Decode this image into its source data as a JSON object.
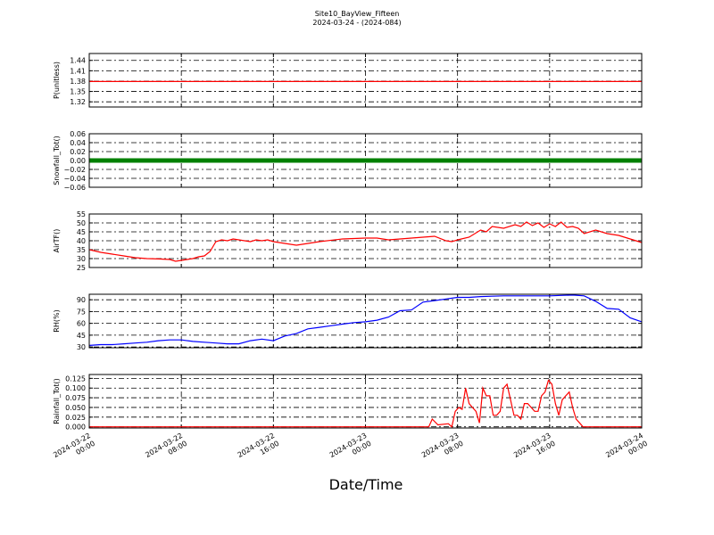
{
  "chart_data": {
    "type": "line",
    "title": "Site10_BayView_Fifteen",
    "subtitle": "2024-03-24 - (2024-084)",
    "xlabel": "Date/Time",
    "x_ticks": [
      [
        "2024-03-22",
        "00:00"
      ],
      [
        "2024-03-22",
        "08:00"
      ],
      [
        "2024-03-22",
        "16:00"
      ],
      [
        "2024-03-23",
        "00:00"
      ],
      [
        "2024-03-23",
        "08:00"
      ],
      [
        "2024-03-23",
        "16:00"
      ],
      [
        "2024-03-24",
        "00:00"
      ]
    ],
    "x_range_hours": [
      0,
      48
    ],
    "grid": true,
    "panels": [
      {
        "ylabel": "P(unitless)",
        "color": "#ff0000",
        "ylim": [
          1.305,
          1.46
        ],
        "y_ticks": [
          "1.44",
          "1.41",
          "1.38",
          "1.35",
          "1.32"
        ],
        "y_tick_values": [
          1.44,
          1.41,
          1.38,
          1.35,
          1.32
        ],
        "series": {
          "hours": [
            0,
            48
          ],
          "values": [
            1.379,
            1.379
          ]
        }
      },
      {
        "ylabel": "Snowfall_Tot()",
        "color": "#008000",
        "ylim": [
          -0.06,
          0.06
        ],
        "y_ticks": [
          "0.06",
          "0.04",
          "0.02",
          "0.00",
          "−0.02",
          "−0.04",
          "−0.06"
        ],
        "y_tick_values": [
          0.06,
          0.04,
          0.02,
          0.0,
          -0.02,
          -0.04,
          -0.06
        ],
        "series": {
          "hours": [
            0,
            48
          ],
          "values": [
            0,
            0
          ]
        }
      },
      {
        "ylabel": "AirTF()",
        "color": "#ff0000",
        "ylim": [
          25,
          55
        ],
        "y_ticks": [
          "55",
          "50",
          "45",
          "40",
          "35",
          "30",
          "25"
        ],
        "y_tick_values": [
          55,
          50,
          45,
          40,
          35,
          30,
          25
        ],
        "series": {
          "hours": [
            0,
            1,
            2,
            3,
            4,
            5,
            6,
            7,
            7.5,
            8,
            8.5,
            9,
            9.5,
            10,
            10.5,
            11,
            11.5,
            12,
            12.5,
            13,
            14,
            14.5,
            15,
            15.5,
            16,
            17,
            18,
            19,
            20,
            22,
            24,
            25,
            26,
            27,
            28,
            29,
            30,
            31,
            31.5,
            32,
            33,
            34,
            34.5,
            35,
            36,
            37,
            37.5,
            38,
            38.5,
            39,
            39.5,
            40,
            40.5,
            41,
            41.5,
            42,
            42.5,
            43,
            44,
            45,
            46,
            47,
            48
          ],
          "values": [
            35,
            33.5,
            32.5,
            31.5,
            30.5,
            30,
            29.8,
            29.5,
            28.5,
            29,
            29.5,
            30,
            31,
            31.5,
            34,
            39.5,
            40.5,
            40,
            41,
            40.5,
            39.5,
            40.5,
            40,
            40.5,
            39.5,
            38.5,
            37.5,
            38.5,
            39.5,
            41,
            41.5,
            41.5,
            40.5,
            41,
            41.5,
            42,
            42.5,
            40,
            39.5,
            40.5,
            42,
            46,
            45,
            48,
            47,
            49,
            48,
            50.5,
            48.5,
            50,
            47.5,
            49.5,
            48,
            50.5,
            47.5,
            48,
            47,
            44,
            46,
            44,
            43,
            41,
            39
          ]
        }
      },
      {
        "ylabel": "RH(%)",
        "color": "#0000ff",
        "ylim": [
          29,
          97
        ],
        "y_ticks": [
          "90",
          "75",
          "60",
          "45",
          "30"
        ],
        "y_tick_values": [
          90,
          75,
          60,
          45,
          30
        ],
        "series": {
          "hours": [
            0,
            1,
            2,
            3,
            4,
            5,
            6,
            7,
            8,
            9,
            10,
            11,
            12,
            13,
            14,
            15,
            16,
            17,
            18,
            19,
            20,
            21,
            22,
            23,
            24,
            25,
            26,
            27,
            28,
            29,
            30,
            31,
            32,
            33,
            34,
            35,
            36,
            37,
            38,
            39,
            40,
            41,
            42,
            43,
            44,
            45,
            46,
            47,
            48
          ],
          "values": [
            32,
            33,
            33,
            34,
            35,
            36,
            38,
            39,
            39,
            37,
            36,
            35,
            34,
            34,
            38,
            40,
            38,
            44,
            47,
            53,
            55,
            57,
            59,
            61,
            62,
            64,
            68,
            76,
            77,
            87,
            89,
            91,
            93,
            93,
            94,
            94.5,
            95,
            95,
            95,
            95,
            95,
            95.5,
            96,
            95,
            88,
            79,
            78,
            67,
            62
          ]
        }
      },
      {
        "ylabel": "Rainfall_Tot()",
        "color": "#ff0000",
        "ylim": [
          -0.003,
          0.135
        ],
        "y_ticks": [
          "0.125",
          "0.100",
          "0.075",
          "0.050",
          "0.025",
          "0.000"
        ],
        "y_tick_values": [
          0.125,
          0.1,
          0.075,
          0.05,
          0.025,
          0.0
        ],
        "series": {
          "hours": [
            0,
            29.5,
            29.8,
            30.3,
            31.2,
            31.5,
            31.8,
            32.1,
            32.4,
            32.7,
            33.0,
            33.3,
            33.6,
            33.9,
            34.2,
            34.5,
            34.8,
            35.1,
            35.4,
            35.7,
            36.0,
            36.3,
            36.6,
            36.9,
            37.2,
            37.5,
            37.8,
            38.1,
            38.4,
            38.7,
            39.0,
            39.3,
            39.6,
            39.9,
            40.2,
            40.5,
            40.8,
            41.1,
            41.4,
            41.7,
            42.0,
            42.3,
            42.6,
            42.9,
            43.2,
            48
          ],
          "values": [
            0,
            0,
            0.02,
            0.005,
            0.008,
            0.0,
            0.04,
            0.05,
            0.045,
            0.1,
            0.06,
            0.05,
            0.04,
            0.01,
            0.1,
            0.08,
            0.08,
            0.03,
            0.03,
            0.04,
            0.1,
            0.11,
            0.07,
            0.03,
            0.03,
            0.02,
            0.06,
            0.06,
            0.05,
            0.04,
            0.04,
            0.08,
            0.09,
            0.12,
            0.11,
            0.06,
            0.03,
            0.07,
            0.08,
            0.09,
            0.05,
            0.02,
            0.01,
            0.0,
            0.0,
            0.0
          ]
        }
      }
    ]
  }
}
